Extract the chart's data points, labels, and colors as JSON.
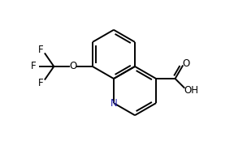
{
  "bg_color": "#ffffff",
  "bond_color": "#000000",
  "atom_color": "#000000",
  "N_color": "#2222aa",
  "line_width": 1.4,
  "font_size": 8.5,
  "figsize": [
    3.04,
    1.85
  ],
  "dpi": 100,
  "xlim": [
    0,
    10
  ],
  "ylim": [
    0,
    6.1
  ]
}
